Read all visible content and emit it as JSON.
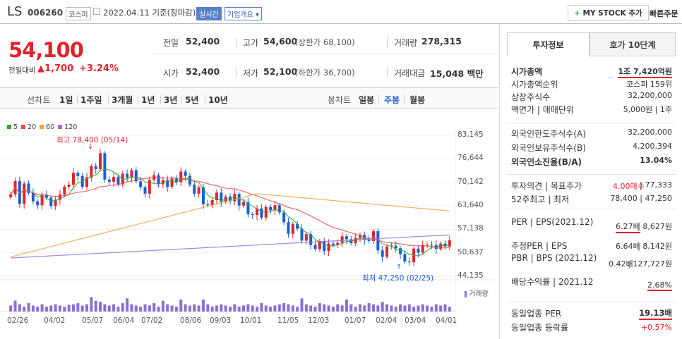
{
  "header": {
    "name": "LS",
    "code": "006260",
    "market": "코스피",
    "date_text": "2022.04.11 기준(장마감)",
    "realtime": "실시간",
    "company_overview": "기업개요",
    "my_stock_label": "MY STOCK 추가",
    "quick_order": "빠른주문"
  },
  "quote": {
    "price": "54,100",
    "change_label": "전일대비",
    "change": "1,700",
    "change_pct": "+3.24%",
    "prev_label": "전일",
    "prev": "52,400",
    "open_label": "시가",
    "open": "52,400",
    "high_label": "고가",
    "high": "54,600",
    "high_limit": "(상한가 68,100)",
    "low_label": "저가",
    "low": "52,100",
    "low_limit": "(하한가 36,700)",
    "volume_label": "거래량",
    "volume": "278,315",
    "amount_label": "거래대금",
    "amount": "15,048 백만"
  },
  "period": {
    "line_chart": "선차트",
    "items": [
      "1일",
      "1주일",
      "3개월",
      "1년",
      "3년",
      "5년",
      "10년"
    ],
    "candle_chart": "봉차트",
    "candles": [
      "일봉",
      "주봉",
      "월봉"
    ],
    "active_candle": "주봉"
  },
  "legend": [
    {
      "label": "5",
      "color": "#2fa52f"
    },
    {
      "label": "20",
      "color": "#e84b4b"
    },
    {
      "label": "60",
      "color": "#f0a040"
    },
    {
      "label": "120",
      "color": "#9a6fd8"
    }
  ],
  "annotations": {
    "high": "최고 78,400 (05/14)",
    "low": "최저 47,250 (02/25)",
    "volume_legend": "거래량"
  },
  "chart_data": {
    "type": "candlestick",
    "title": "",
    "ylim": [
      44135,
      83145
    ],
    "yticks": [
      "83,145",
      "76,644",
      "70,142",
      "63,640",
      "57,138",
      "50,637",
      "44,135"
    ],
    "ytick_values": [
      83145,
      76644,
      70142,
      63640,
      57138,
      50637,
      44135
    ],
    "xticks": [
      "02/26",
      "04/02",
      "05/07",
      "06/04",
      "07/02",
      "08/06",
      "09/03",
      "10/01",
      "11/05",
      "12/03",
      "01/07",
      "02/04",
      "03/04",
      "04/01"
    ],
    "closes": [
      66800,
      70500,
      64200,
      69800,
      67200,
      64900,
      63800,
      66700,
      65900,
      63600,
      65300,
      66800,
      68900,
      69500,
      72800,
      71900,
      68900,
      71500,
      74600,
      73800,
      78200,
      70900,
      70300,
      71600,
      69600,
      72500,
      71400,
      73500,
      70400,
      68800,
      67000,
      70800,
      72100,
      69600,
      70800,
      68900,
      71200,
      70200,
      73100,
      71900,
      69500,
      67000,
      68800,
      64100,
      63800,
      65200,
      67300,
      64700,
      66200,
      64900,
      66900,
      63700,
      64700,
      61300,
      61100,
      62900,
      60400,
      63300,
      62400,
      63800,
      61800,
      59100,
      55900,
      58600,
      57300,
      54000,
      55800,
      52800,
      51700,
      53900,
      51100,
      53200,
      52800,
      53400,
      55200,
      54400,
      53300,
      54800,
      55600,
      54200,
      53900,
      56600,
      51300,
      49500,
      52400,
      52600,
      51900,
      50300,
      48200,
      48000,
      51800,
      50700,
      52800,
      52900,
      52800,
      51700,
      53200,
      52400,
      54100
    ],
    "volume_series": [
      0.25,
      0.45,
      0.3,
      0.2,
      0.35,
      0.25,
      0.2,
      0.3,
      0.2,
      0.25,
      0.3,
      0.25,
      0.2,
      0.28,
      0.3,
      0.35,
      0.25,
      0.3,
      0.6,
      0.45,
      0.4,
      0.3,
      0.25,
      0.3,
      0.2,
      0.35,
      0.55,
      0.3,
      0.25,
      0.2,
      0.3,
      0.25,
      0.35,
      0.2,
      0.45,
      0.3,
      0.25,
      0.2,
      0.5,
      0.3,
      0.25,
      0.3,
      0.25,
      0.5,
      0.3,
      0.2,
      0.25,
      0.3,
      0.25,
      0.2,
      0.3,
      0.2,
      0.25,
      0.3,
      0.25,
      0.2,
      0.35,
      0.25,
      0.2,
      0.25,
      0.3,
      0.35,
      0.3,
      0.25,
      0.2,
      0.55,
      0.3,
      0.25,
      0.2,
      0.35,
      0.3,
      0.25,
      0.2,
      0.3,
      0.25,
      0.5,
      0.3,
      0.2,
      0.3,
      0.25,
      0.35,
      0.3,
      0.25,
      0.4,
      0.3,
      0.25,
      0.2,
      0.3,
      0.25,
      0.3,
      0.2,
      0.25,
      0.3,
      0.25,
      0.2,
      0.3,
      0.25,
      0.3,
      0.2
    ]
  },
  "panel": {
    "tab_active": "투자정보",
    "tab_other": "호가 10단계",
    "rows1": [
      {
        "label": "시가총액",
        "value": "1조 7,420억원",
        "bold": true,
        "ul": true
      },
      {
        "label": "시가총액순위",
        "value": "코스피 159위"
      },
      {
        "label": "상장주식수",
        "value": "32,200,000"
      },
      {
        "label": "액면가 | 매매단위",
        "value": "5,000원 | 1주"
      }
    ],
    "rows2": [
      {
        "label": "외국인한도주식수(A)",
        "value": "32,200,000"
      },
      {
        "label": "외국인보유주식수(B)",
        "value": "4,200,394"
      },
      {
        "label": "외국인소진율(B/A)",
        "value": "13.04%",
        "bold": true
      }
    ],
    "opinion_label": "투자의견 | 목표주가",
    "opinion_value": "4.00매수",
    "target": "77,333",
    "w52_label": "52주최고 | 최저",
    "w52_value": "78,400 | 47,250",
    "per_label": "PER | EPS(2021.12)",
    "per": "6.27배",
    "eps": "8,627원",
    "est_label": "추정PER | EPS",
    "est_per": "6.64배",
    "est_eps": "8,142원",
    "pbr_label": "PBR | BPS (2021.12)",
    "pbr": "0.42배",
    "bps": "127,727원",
    "div_label": "배당수익률 | 2021.12",
    "div": "2.68%",
    "peer_per_label": "동일업종 PER",
    "peer_per": "19.13배",
    "peer_rate_label": "동일업종 등락률",
    "peer_rate": "+0.57%"
  }
}
